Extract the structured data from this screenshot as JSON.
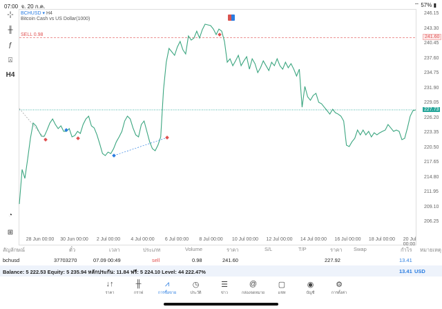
{
  "status": {
    "time": "07:00",
    "date": "จ. 20 ก.ค.",
    "battery": "57%"
  },
  "toolbar": [
    {
      "icon": "crosshair-icon",
      "label": "-¦-"
    },
    {
      "icon": "candles-icon",
      "label": "╫"
    },
    {
      "icon": "function-icon",
      "label": "ƒ"
    },
    {
      "icon": "shapes-icon",
      "label": "⍓"
    },
    {
      "icon": "timeframe-icon",
      "label": "H4"
    }
  ],
  "toolbar_bottom": [
    {
      "icon": "analytics-icon",
      "label": "◔"
    },
    {
      "icon": "add-icon",
      "label": "⊞"
    }
  ],
  "chart": {
    "symbol": "BCHUSD",
    "timeframe": "H4",
    "description": "Bitcoin Cash vs US Dollar(1000)",
    "sell_label": "SELL 0.98",
    "sell_price": "241.60",
    "current_price": "227.73",
    "colors": {
      "line": "#3aa57f",
      "sell": "#e05050",
      "buy": "#2a7de1",
      "current": "#26a69a"
    }
  },
  "chart_data": {
    "type": "line",
    "yticks": [
      "246.15",
      "243.30",
      "240.45",
      "237.60",
      "234.75",
      "231.90",
      "229.05",
      "226.20",
      "223.35",
      "220.50",
      "217.65",
      "214.80",
      "211.95",
      "209.10",
      "206.25"
    ],
    "ylim": [
      206.25,
      246.15
    ],
    "xticks": [
      "28 Jun 00:00",
      "30 Jun 00:00",
      "2 Jul 00:00",
      "4 Jul 00:00",
      "6 Jul 00:00",
      "8 Jul 00:00",
      "10 Jul 00:00",
      "12 Jul 00:00",
      "14 Jul 00:00",
      "16 Jul 00:00",
      "18 Jul 00:00",
      "20 Jul 00:00"
    ],
    "values": [
      209.68,
      216.31,
      214.59,
      218.3,
      222.28,
      225.2,
      224.67,
      223.61,
      222.68,
      222.68,
      223.87,
      225.2,
      225.99,
      224.93,
      224.14,
      224.67,
      223.61,
      223.61,
      224.14,
      222.55,
      222.81,
      223.61,
      223.21,
      224.93,
      225.99,
      226.53,
      224.67,
      224.27,
      222.94,
      221.22,
      219.36,
      218.97,
      219.63,
      219.36,
      220.29,
      221.62,
      222.55,
      223.61,
      225.6,
      226.53,
      225.99,
      224.27,
      222.94,
      222.55,
      224.93,
      225.6,
      223.61,
      221.62,
      220.29,
      219.9,
      220.96,
      222.55,
      231.56,
      236.87,
      239.52,
      238.86,
      238.19,
      239.79,
      240.85,
      239.25,
      238.46,
      241.91,
      241.11,
      241.51,
      242.83,
      241.51,
      243.1,
      244.16,
      244.03,
      243.9,
      243.23,
      242.17,
      243.23,
      242.83,
      240.85,
      236.87,
      237.53,
      236.2,
      237.13,
      238.19,
      236.2,
      237.13,
      237.93,
      235.54,
      237.53,
      236.6,
      234.88,
      235.81,
      237.13,
      236.2,
      235.28,
      236.87,
      236.2,
      237.53,
      236.2,
      235.54,
      236.87,
      235.81,
      236.6,
      235.54,
      234.22,
      235.54,
      228.25,
      232.23,
      230.24,
      229.57,
      230.5,
      230.9,
      229.18,
      228.91,
      228.25,
      227.59,
      226.92,
      227.85,
      227.19,
      226.92,
      226.53,
      225.6,
      220.96,
      220.69,
      221.62,
      222.28,
      223.87,
      222.94,
      223.87,
      222.94,
      223.61,
      222.55,
      223.34,
      222.94,
      223.34,
      223.61,
      223.87,
      224.93,
      224.27,
      223.61,
      223.87,
      223.61,
      222.02,
      222.28,
      224.27,
      226.53,
      227.59,
      227.73
    ],
    "trade_markers": [
      {
        "type": "sell",
        "price": 222.02
      },
      {
        "type": "buy",
        "price": 223.87
      },
      {
        "type": "sell",
        "price": 222.28
      },
      {
        "type": "buy",
        "price": 218.97
      },
      {
        "type": "sell",
        "price": 222.42
      },
      {
        "type": "sell",
        "price": 242.17
      }
    ],
    "grid": false
  },
  "table": {
    "headers": [
      "สัญลักษณ์",
      "ตั๋ว",
      "เวลา",
      "ประเภท",
      "Volume",
      "ราคา",
      "S/L",
      "T/P",
      "ราคา",
      "Swap",
      "กำไร",
      "หมายเหตุ"
    ],
    "rows": [
      {
        "symbol": "bchusd",
        "ticket": "37703270",
        "time": "07.09 00:49",
        "type": "sell",
        "volume": "0.98",
        "price": "241.60",
        "sl": "",
        "tp": "",
        "current": "227.92",
        "swap": "",
        "profit": "13.41",
        "comment": ""
      }
    ],
    "balance": "Balance: 5 222.53 Equity: 5 235.94 หลักประกัน: 11.84 ฟรี: 5 224.10 Level: 44 222.47%",
    "total_profit": "13.41",
    "currency": "USD"
  },
  "nav": [
    {
      "icon": "quotes-icon",
      "glyph": "↓↑",
      "label": "ราคา"
    },
    {
      "icon": "chart-icon",
      "glyph": "╫",
      "label": "กราฟ"
    },
    {
      "icon": "trade-icon",
      "glyph": "⩘",
      "label": "การซื้อขาย",
      "active": true
    },
    {
      "icon": "history-icon",
      "glyph": "◷",
      "label": "ประวัติ"
    },
    {
      "icon": "news-icon",
      "glyph": "☰",
      "label": "ข่าว"
    },
    {
      "icon": "mailbox-icon",
      "glyph": "@",
      "label": "กล่องจดหมาย"
    },
    {
      "icon": "chat-icon",
      "glyph": "▢",
      "label": "แชท"
    },
    {
      "icon": "account-icon",
      "glyph": "◉",
      "label": "บัญชี"
    },
    {
      "icon": "settings-icon",
      "glyph": "⚙",
      "label": "การตั้งค่า"
    }
  ]
}
